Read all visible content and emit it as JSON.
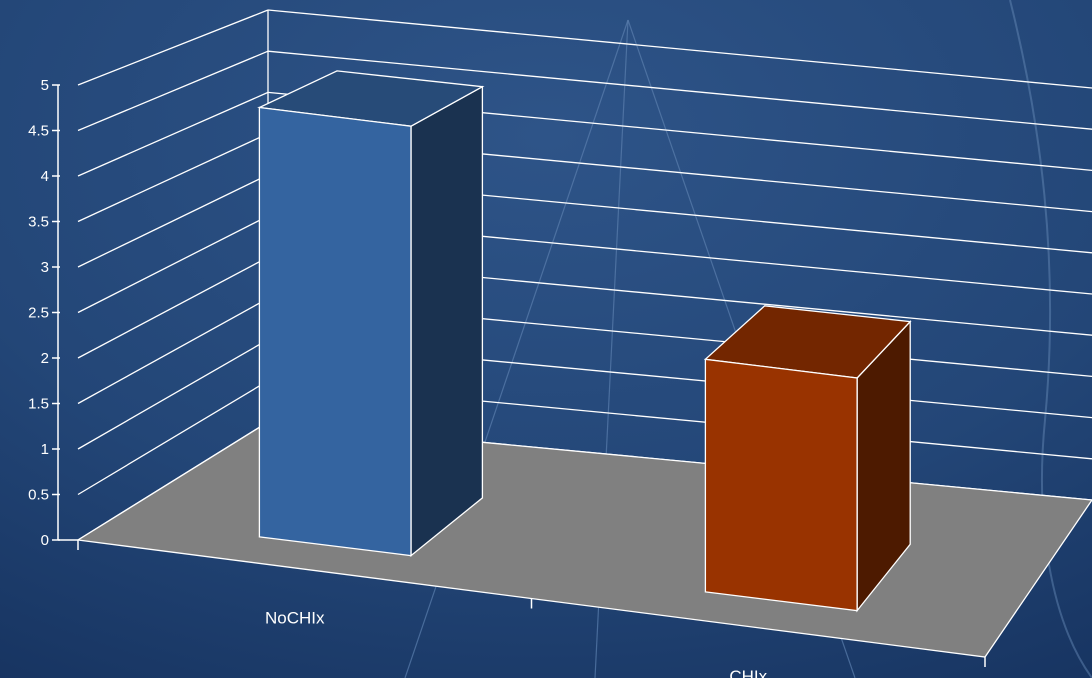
{
  "chart_data": {
    "type": "bar",
    "style": "3d-column",
    "categories": [
      "NoCHIx",
      "CHIx"
    ],
    "values": [
      4.8,
      2.6
    ],
    "colors": [
      "#3464a0",
      "#993300"
    ],
    "ylim": [
      0,
      5
    ],
    "yticks": [
      "0",
      "0.5",
      "1",
      "1.5",
      "2",
      "2.5",
      "3",
      "3.5",
      "4",
      "4.5",
      "5"
    ],
    "grid": true,
    "legend": "none",
    "title": "",
    "xlabel": "",
    "ylabel": ""
  },
  "theme": {
    "background": "#1e3d6b",
    "floor": "#808080",
    "gridline": "#ffffff",
    "text": "#ffffff"
  }
}
